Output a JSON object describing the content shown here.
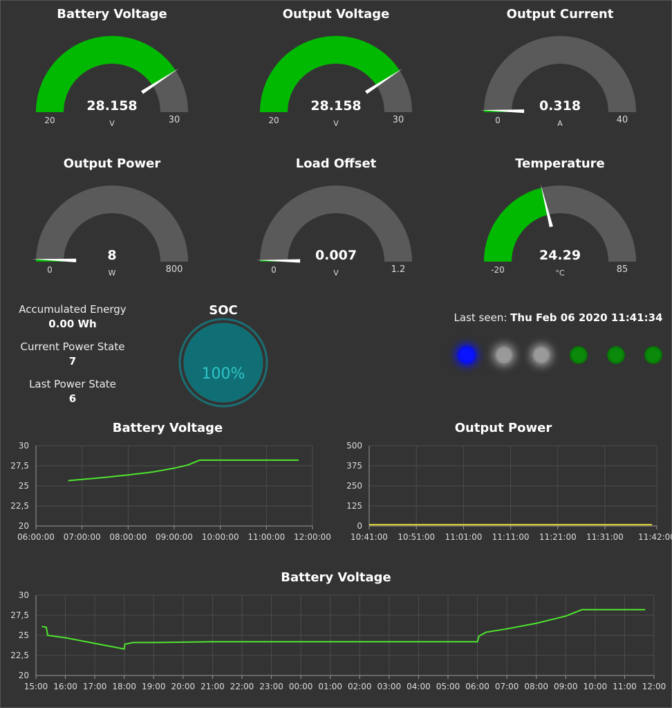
{
  "gauges": [
    {
      "title": "Battery Voltage",
      "value": "28.158",
      "unit": "V",
      "min": "20",
      "max": "30",
      "min_num": 20,
      "max_num": 30,
      "val_num": 28.158,
      "color": "#00b900"
    },
    {
      "title": "Output Voltage",
      "value": "28.158",
      "unit": "V",
      "min": "20",
      "max": "30",
      "min_num": 20,
      "max_num": 30,
      "val_num": 28.158,
      "color": "#00b900"
    },
    {
      "title": "Output Current",
      "value": "0.318",
      "unit": "A",
      "min": "0",
      "max": "40",
      "min_num": 0,
      "max_num": 40,
      "val_num": 0.318,
      "color": "#00b900"
    },
    {
      "title": "Output Power",
      "value": "8",
      "unit": "W",
      "min": "0",
      "max": "800",
      "min_num": 0,
      "max_num": 800,
      "val_num": 8,
      "color": "#00b900"
    },
    {
      "title": "Load Offset",
      "value": "0.007",
      "unit": "V",
      "min": "0",
      "max": "1.2",
      "min_num": 0,
      "max_num": 1.2,
      "val_num": 0.007,
      "color": "#00b900"
    },
    {
      "title": "Temperature",
      "value": "24.29",
      "unit": "°C",
      "min": "-20",
      "max": "85",
      "min_num": -20,
      "max_num": 85,
      "val_num": 24.29,
      "color": "#00b900"
    }
  ],
  "stats": {
    "accumulated_energy_label": "Accumulated Energy",
    "accumulated_energy_value": "0.00 Wh",
    "current_power_state_label": "Current Power State",
    "current_power_state_value": "7",
    "last_power_state_label": "Last Power State",
    "last_power_state_value": "6"
  },
  "soc": {
    "title": "SOC",
    "value": "100%",
    "fraction": 1.0
  },
  "last_seen": {
    "label": "Last seen:",
    "value": "Thu Feb 06 2020 11:41:34"
  },
  "leds": [
    {
      "name": "led-blue",
      "state": "on",
      "color": "#0a14ff"
    },
    {
      "name": "led-gray-1",
      "state": "on",
      "color": "#9a9a9a"
    },
    {
      "name": "led-gray-2",
      "state": "on",
      "color": "#9a9a9a"
    },
    {
      "name": "led-green-1",
      "state": "off",
      "color": "#0b8a0b"
    },
    {
      "name": "led-green-2",
      "state": "off",
      "color": "#0b8a0b"
    },
    {
      "name": "led-green-3",
      "state": "off",
      "color": "#0b8a0b"
    }
  ],
  "chart_data": [
    {
      "type": "line",
      "title": "Battery Voltage",
      "line_color": "#4ee62e",
      "x_ticks": [
        "06:00:00",
        "07:00:00",
        "08:00:00",
        "09:00:00",
        "10:00:00",
        "11:00:00",
        "12:00:00"
      ],
      "y_ticks": [
        "20",
        "22,5",
        "25",
        "27,5",
        "30"
      ],
      "xlim_hours": [
        6,
        12
      ],
      "ylim": [
        20,
        30
      ],
      "series": [
        {
          "points": [
            [
              6.7,
              25.65
            ],
            [
              7.0,
              25.8
            ],
            [
              7.5,
              26.05
            ],
            [
              8.0,
              26.35
            ],
            [
              8.5,
              26.7
            ],
            [
              9.0,
              27.2
            ],
            [
              9.3,
              27.6
            ],
            [
              9.55,
              28.2
            ],
            [
              10.0,
              28.2
            ],
            [
              11.0,
              28.2
            ],
            [
              11.7,
              28.2
            ]
          ]
        }
      ]
    },
    {
      "type": "line",
      "title": "Output Power",
      "line_color": "#e8d83a",
      "x_ticks": [
        "10:41:00",
        "10:51:00",
        "11:01:00",
        "11:11:00",
        "11:21:00",
        "11:31:00",
        "11:42:00"
      ],
      "y_ticks": [
        "0",
        "125",
        "250",
        "375",
        "500"
      ],
      "xlim_minutes": [
        0,
        61
      ],
      "ylim": [
        0,
        500
      ],
      "series": [
        {
          "points": [
            [
              0,
              8
            ],
            [
              10,
              8
            ],
            [
              20,
              8
            ],
            [
              30,
              8
            ],
            [
              40,
              8
            ],
            [
              50,
              8
            ],
            [
              60,
              8
            ]
          ]
        }
      ]
    },
    {
      "type": "line",
      "title": "Battery Voltage",
      "line_color": "#4ee62e",
      "x_ticks": [
        "15:00",
        "16:00",
        "17:00",
        "18:00",
        "19:00",
        "20:00",
        "21:00",
        "22:00",
        "23:00",
        "00:00",
        "01:00",
        "02:00",
        "03:00",
        "04:00",
        "05:00",
        "06:00",
        "07:00",
        "08:00",
        "09:00",
        "10:00",
        "11:00",
        "12:00"
      ],
      "y_ticks": [
        "20",
        "22,5",
        "25",
        "27,5",
        "30"
      ],
      "xlim_hours": [
        15,
        36
      ],
      "ylim": [
        20,
        30
      ],
      "series": [
        {
          "points": [
            [
              15.2,
              26.1
            ],
            [
              15.35,
              26.0
            ],
            [
              15.4,
              25.0
            ],
            [
              16.0,
              24.7
            ],
            [
              17.0,
              24.0
            ],
            [
              18.0,
              23.3
            ],
            [
              18.02,
              23.9
            ],
            [
              18.3,
              24.1
            ],
            [
              19.0,
              24.1
            ],
            [
              20.0,
              24.15
            ],
            [
              21.0,
              24.2
            ],
            [
              24.0,
              24.2
            ],
            [
              27.0,
              24.2
            ],
            [
              30.0,
              24.2
            ],
            [
              30.05,
              24.9
            ],
            [
              30.3,
              25.4
            ],
            [
              31.0,
              25.8
            ],
            [
              32.0,
              26.5
            ],
            [
              33.0,
              27.4
            ],
            [
              33.55,
              28.2
            ],
            [
              34.0,
              28.2
            ],
            [
              35.0,
              28.2
            ],
            [
              35.7,
              28.2
            ]
          ]
        }
      ]
    }
  ]
}
